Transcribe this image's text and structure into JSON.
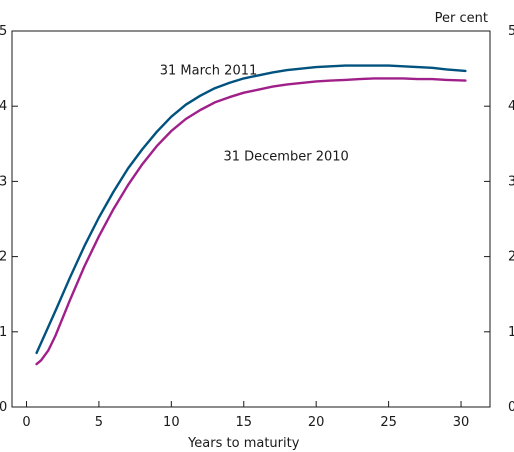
{
  "chart_data": {
    "type": "line",
    "xlabel": "Years to maturity",
    "ylabel": "Per cent",
    "xlim": [
      -1,
      32
    ],
    "ylim": [
      0,
      5
    ],
    "x_ticks": [
      0,
      5,
      10,
      15,
      20,
      25,
      30
    ],
    "y_ticks": [
      0,
      1,
      2,
      3,
      4,
      5
    ],
    "series": [
      {
        "name": "31 March 2011",
        "color": "#00527f",
        "x": [
          0.7,
          1,
          2,
          3,
          4,
          5,
          6,
          7,
          8,
          9,
          10,
          11,
          12,
          13,
          14,
          15,
          16,
          17,
          18,
          19,
          20,
          21,
          22,
          23,
          24,
          25,
          26,
          27,
          28,
          29,
          30.3
        ],
        "values": [
          0.72,
          0.85,
          1.28,
          1.72,
          2.14,
          2.52,
          2.86,
          3.17,
          3.43,
          3.66,
          3.86,
          4.02,
          4.14,
          4.24,
          4.31,
          4.37,
          4.41,
          4.45,
          4.48,
          4.5,
          4.52,
          4.53,
          4.54,
          4.54,
          4.54,
          4.54,
          4.53,
          4.52,
          4.51,
          4.49,
          4.47
        ]
      },
      {
        "name": "31 December 2010",
        "color": "#a0208a",
        "x": [
          0.7,
          1,
          1.5,
          2,
          3,
          4,
          5,
          6,
          7,
          8,
          9,
          10,
          11,
          12,
          13,
          14,
          15,
          16,
          17,
          18,
          19,
          20,
          21,
          22,
          23,
          24,
          25,
          26,
          27,
          28,
          29,
          30.3
        ],
        "values": [
          0.57,
          0.62,
          0.75,
          0.95,
          1.42,
          1.87,
          2.27,
          2.63,
          2.95,
          3.23,
          3.47,
          3.67,
          3.83,
          3.95,
          4.05,
          4.12,
          4.18,
          4.22,
          4.26,
          4.29,
          4.31,
          4.33,
          4.34,
          4.35,
          4.36,
          4.37,
          4.37,
          4.37,
          4.36,
          4.36,
          4.35,
          4.34
        ]
      }
    ],
    "annotations": [
      {
        "text": "31 March 2011",
        "x": 9.2,
        "y": 4.42
      },
      {
        "text": "31 December 2010",
        "x": 13.6,
        "y": 3.28
      }
    ]
  }
}
